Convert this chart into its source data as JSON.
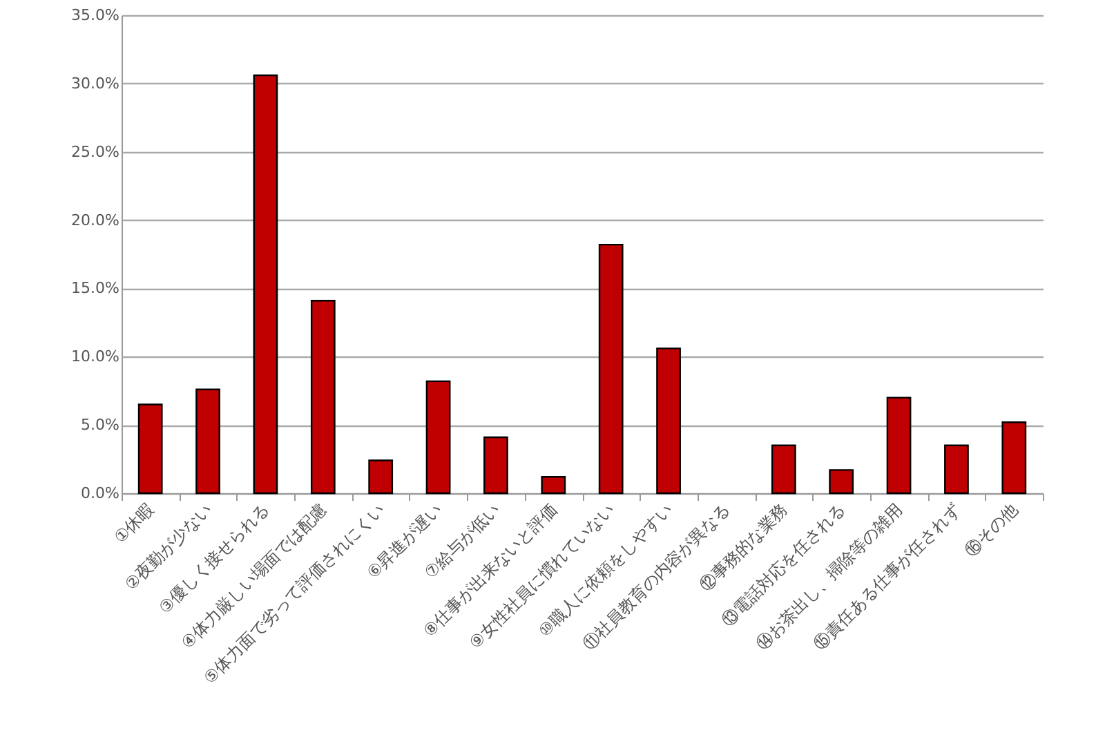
{
  "chart_data": {
    "type": "bar",
    "categories": [
      "①休暇",
      "②夜勤が少ない",
      "③優しく接せられる",
      "④体力厳しい場面では配慮",
      "⑤体力面で劣って評価されにくい",
      "⑥昇進が遅い",
      "⑦給与が低い",
      "⑧仕事が出来ないと評価",
      "⑨女性社員に慣れていない",
      "⑩職人に依頼をしやすい",
      "⑪社員教育の内容が異なる",
      "⑫事務的な業務",
      "⑬電話対応を任される",
      "⑭お茶出し、掃除等の雑用",
      "⑮責任ある仕事が任されず",
      "⑯その他"
    ],
    "values": [
      6.5,
      7.6,
      30.6,
      14.1,
      2.4,
      8.2,
      4.1,
      1.2,
      18.2,
      10.6,
      0,
      3.5,
      1.7,
      7.0,
      3.5,
      5.2
    ],
    "color": "#c00000",
    "ylim": [
      0,
      35
    ],
    "yticks": [
      {
        "value": 0,
        "label": "0.0%"
      },
      {
        "value": 5,
        "label": "5.0%"
      },
      {
        "value": 10,
        "label": "10.0%"
      },
      {
        "value": 15,
        "label": "15.0%"
      },
      {
        "value": 20,
        "label": "20.0%"
      },
      {
        "value": 25,
        "label": "25.0%"
      },
      {
        "value": 30,
        "label": "30.0%"
      },
      {
        "value": 35,
        "label": "35.0%"
      }
    ],
    "grid": "y"
  }
}
